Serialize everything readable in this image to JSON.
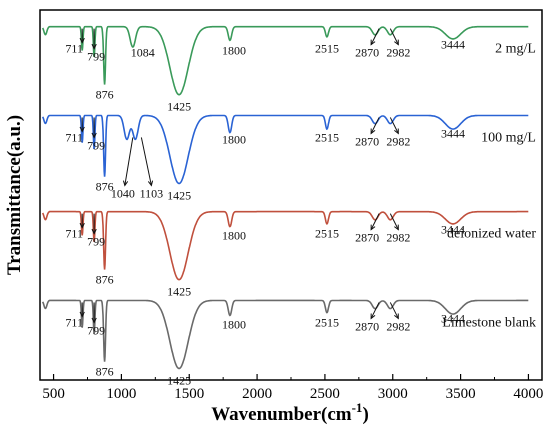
{
  "chart_data": {
    "type": "line",
    "xlabel": "Wavenumber",
    "xlabel_unit": "(cm",
    "xlabel_sup": "-1",
    "xlabel_close": ")",
    "ylabel": "Transmittance(a.u.)",
    "xlim": [
      400,
      4100
    ],
    "xticks": [
      500,
      1000,
      1500,
      2000,
      2500,
      3000,
      3500,
      4000
    ],
    "grid": false,
    "series": [
      {
        "name": "2 mg/L",
        "color": "#3a9a5a",
        "baseline": 0.955,
        "x": [
          400,
          711,
          799,
          876,
          1084,
          1425,
          1800,
          2515,
          2870,
          2982,
          3444,
          4000
        ],
        "depth": [
          0.0,
          0.35,
          0.45,
          0.85,
          0.3,
          1.0,
          0.2,
          0.15,
          0.12,
          0.12,
          0.18,
          0.0
        ],
        "labels": [
          {
            "text": "711"
          },
          {
            "text": "799"
          },
          {
            "text": "876"
          },
          {
            "text": "1084"
          },
          {
            "text": "1425"
          },
          {
            "text": "1800"
          },
          {
            "text": "2515"
          },
          {
            "text": "2870"
          },
          {
            "text": "2982"
          },
          {
            "text": "3444"
          }
        ]
      },
      {
        "name": "100 mg/L",
        "color": "#2a63d4",
        "baseline": 0.715,
        "x": [
          400,
          711,
          799,
          876,
          1040,
          1103,
          1425,
          1800,
          2515,
          2870,
          2982,
          3444,
          4000
        ],
        "depth": [
          0.0,
          0.4,
          0.5,
          0.9,
          0.35,
          0.35,
          1.0,
          0.25,
          0.2,
          0.12,
          0.12,
          0.2,
          0.0
        ],
        "labels": [
          {
            "text": "711"
          },
          {
            "text": "799"
          },
          {
            "text": "876"
          },
          {
            "text": "1040"
          },
          {
            "text": "1103"
          },
          {
            "text": "1425"
          },
          {
            "text": "1800"
          },
          {
            "text": "2515"
          },
          {
            "text": "2870"
          },
          {
            "text": "2982"
          },
          {
            "text": "3444"
          }
        ]
      },
      {
        "name": "deionized water",
        "color": "#c0503d",
        "baseline": 0.455,
        "x": [
          400,
          711,
          799,
          876,
          1425,
          1800,
          2515,
          2870,
          2982,
          3444,
          4000
        ],
        "depth": [
          0.0,
          0.35,
          0.45,
          0.85,
          1.0,
          0.22,
          0.18,
          0.12,
          0.12,
          0.18,
          0.0
        ],
        "labels": [
          {
            "text": "711"
          },
          {
            "text": "799"
          },
          {
            "text": "876"
          },
          {
            "text": "1425"
          },
          {
            "text": "1800"
          },
          {
            "text": "2515"
          },
          {
            "text": "2870"
          },
          {
            "text": "2982"
          },
          {
            "text": "3444"
          }
        ]
      },
      {
        "name": "Limestone blank",
        "color": "#6a6a6a",
        "baseline": 0.215,
        "x": [
          400,
          711,
          799,
          876,
          1425,
          1800,
          2515,
          2870,
          2982,
          3444,
          4000
        ],
        "depth": [
          0.0,
          0.4,
          0.5,
          0.9,
          1.0,
          0.22,
          0.18,
          0.12,
          0.12,
          0.2,
          0.0
        ],
        "labels": [
          {
            "text": "711"
          },
          {
            "text": "799"
          },
          {
            "text": "876"
          },
          {
            "text": "1425"
          },
          {
            "text": "1800"
          },
          {
            "text": "2515"
          },
          {
            "text": "2870"
          },
          {
            "text": "2982"
          },
          {
            "text": "3444"
          }
        ]
      }
    ]
  }
}
